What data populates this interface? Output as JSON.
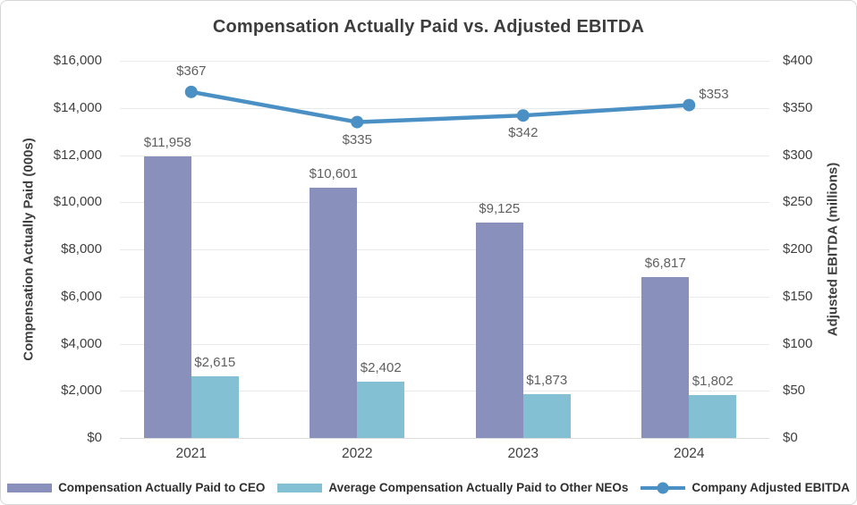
{
  "chart": {
    "title": "Compensation Actually Paid vs. Adjusted EBITDA"
  },
  "colors": {
    "ceo_bar": "#8890bb",
    "neo_bar": "#83c0d4",
    "ebitda_line": "#4a90c4",
    "gridline": "#e9e9e9",
    "data_label": "#5f5f5f"
  },
  "legend": {
    "ceo_label": "Compensation Actually Paid to CEO",
    "neo_label": "Average Compensation Actually Paid to Other NEOs",
    "line_label": "Company Adjusted EBITDA"
  },
  "chart_data": {
    "type": "bar+line",
    "title": "Compensation Actually Paid vs. Adjusted EBITDA",
    "categories": [
      "2021",
      "2022",
      "2023",
      "2024"
    ],
    "bar_series": [
      {
        "key": "ceo",
        "name": "Compensation Actually Paid to CEO",
        "color": "#8890bb",
        "axis": "left",
        "values": [
          11958,
          10601,
          9125,
          6817
        ],
        "labels": [
          "$11,958",
          "$10,601",
          "$9,125",
          "$6,817"
        ]
      },
      {
        "key": "neo",
        "name": "Average Compensation Actually Paid to Other NEOs",
        "color": "#83c0d4",
        "axis": "left",
        "values": [
          2615,
          2402,
          1873,
          1802
        ],
        "labels": [
          "$2,615",
          "$2,402",
          "$1,873",
          "$1,802"
        ]
      }
    ],
    "line_series": {
      "key": "ebitda",
      "name": "Company Adjusted EBITDA",
      "color": "#4a90c4",
      "axis": "right",
      "values": [
        367,
        335,
        342,
        353
      ],
      "labels": [
        "$367",
        "$335",
        "$342",
        "$353"
      ],
      "label_positions": [
        "above",
        "below",
        "below",
        "right"
      ]
    },
    "left_axis": {
      "title": "Compensation Actually Paid (000s)",
      "min": 0,
      "max": 16000,
      "step": 2000,
      "tick_labels": [
        "$16,000",
        "$14,000",
        "$12,000",
        "$10,000",
        "$8,000",
        "$6,000",
        "$4,000",
        "$2,000",
        "$0"
      ]
    },
    "right_axis": {
      "title": "Adjusted EBITDA (millions)",
      "min": 0,
      "max": 400,
      "step": 50,
      "tick_labels": [
        "$400",
        "$350",
        "$300",
        "$250",
        "$200",
        "$150",
        "$100",
        "$50",
        "$0"
      ]
    },
    "grid": true,
    "legend_position": "bottom"
  }
}
